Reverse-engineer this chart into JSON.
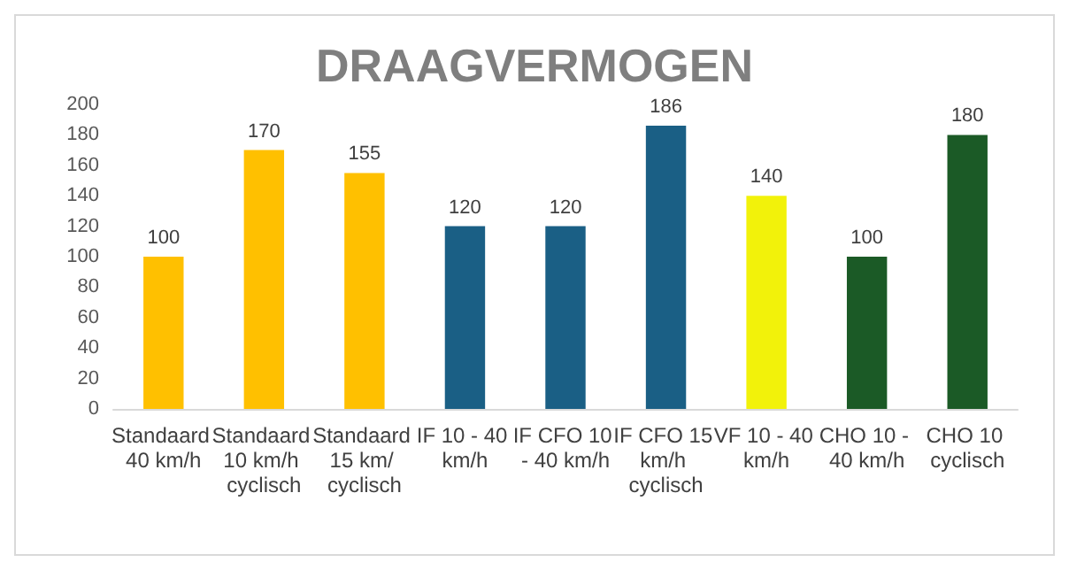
{
  "chart_data": {
    "type": "bar",
    "title": "DRAAGVERMOGEN",
    "categories": [
      "Standaard 40 km/h",
      "Standaard 10 km/h cyclisch",
      "Standaard 15 km/ cyclisch",
      "IF 10 - 40 km/h",
      "IF CFO 10 - 40 km/h",
      "IF CFO 15 km/h cyclisch",
      "VF 10 - 40 km/h",
      "CHO 10 - 40 km/h",
      "CHO 10 cyclisch"
    ],
    "values": [
      100,
      170,
      155,
      120,
      120,
      186,
      140,
      100,
      180
    ],
    "colors": [
      "#ffc000",
      "#ffc000",
      "#ffc000",
      "#1a5f85",
      "#1a5f85",
      "#1a5f85",
      "#f2f20a",
      "#1b5a26",
      "#1b5a26"
    ],
    "ylim": [
      0,
      200
    ],
    "yticks": [
      0,
      20,
      40,
      60,
      80,
      100,
      120,
      140,
      160,
      180,
      200
    ],
    "grid": false,
    "data_labels": true
  }
}
